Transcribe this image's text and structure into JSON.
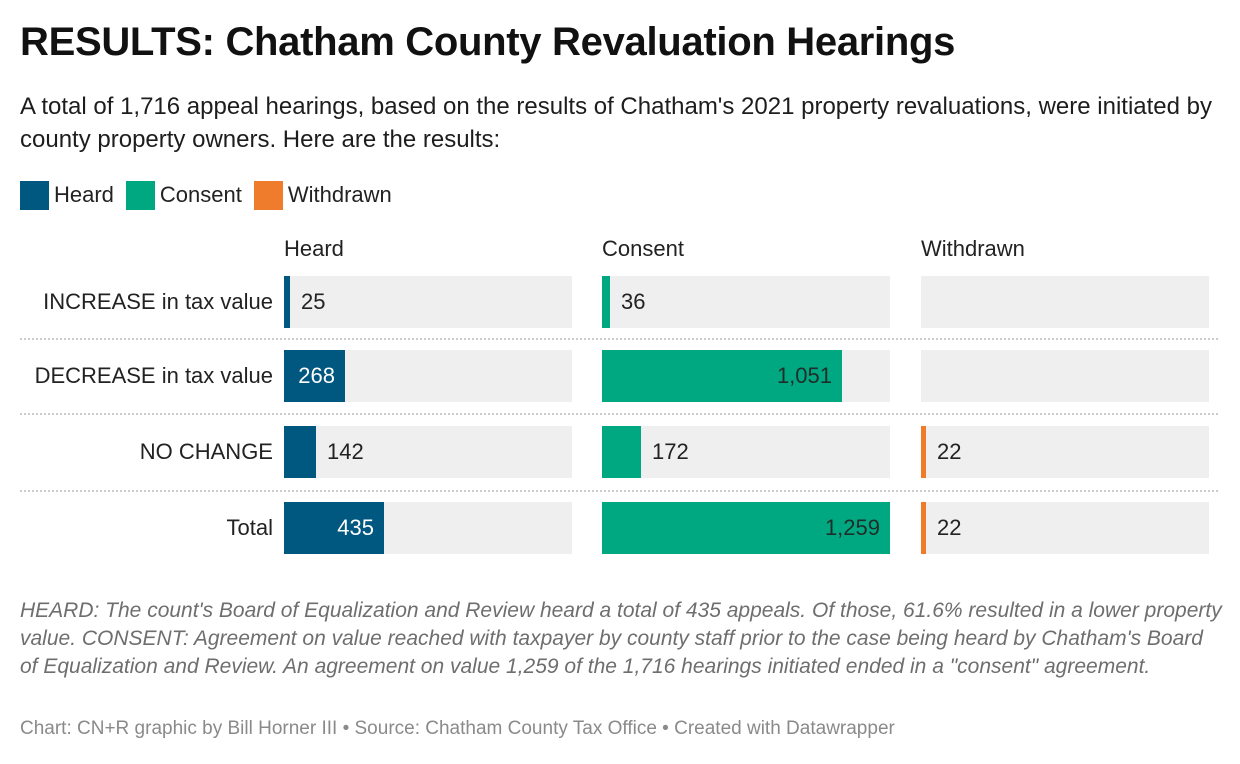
{
  "header": {
    "title": "RESULTS: Chatham County Revaluation Hearings",
    "subtitle": "A total of 1,716 appeal hearings, based on the results of Chatham's 2021 property revaluations, were initiated by county property owners. Here are the results:"
  },
  "colors": {
    "heard": "#00577f",
    "consent": "#00a882",
    "withdrawn": "#ef7c2c",
    "track": "#efefef"
  },
  "chart_data": {
    "type": "bar",
    "orientation": "horizontal",
    "layout": "small-multiples",
    "categories": [
      "INCREASE in tax value",
      "DECREASE in tax value",
      "NO CHANGE",
      "Total"
    ],
    "series": [
      {
        "name": "Heard",
        "values": [
          25,
          268,
          142,
          435
        ],
        "labels": [
          "25",
          "268",
          "142",
          "435"
        ],
        "max": 1259
      },
      {
        "name": "Consent",
        "values": [
          36,
          1051,
          172,
          1259
        ],
        "labels": [
          "36",
          "1,051",
          "172",
          "1,259"
        ],
        "max": 1259
      },
      {
        "name": "Withdrawn",
        "values": [
          null,
          null,
          22,
          22
        ],
        "labels": [
          "",
          "",
          "22",
          "22"
        ],
        "max": 1259
      }
    ],
    "legend": {
      "position": "top-left",
      "entries": [
        "Heard",
        "Consent",
        "Withdrawn"
      ]
    }
  },
  "notes": "HEARD: The count's Board of Equalization and Review heard a total of 435 appeals. Of those, 61.6% resulted in a lower property value. CONSENT: Agreement on value reached with taxpayer by county staff prior to the case being heard by Chatham's Board of Equalization and Review. An agreement on value 1,259 of the 1,716 hearings initiated ended in a \"consent\" agreement.",
  "footer": "Chart: CN+R graphic by Bill Horner III • Source: Chatham County Tax Office • Created with Datawrapper"
}
